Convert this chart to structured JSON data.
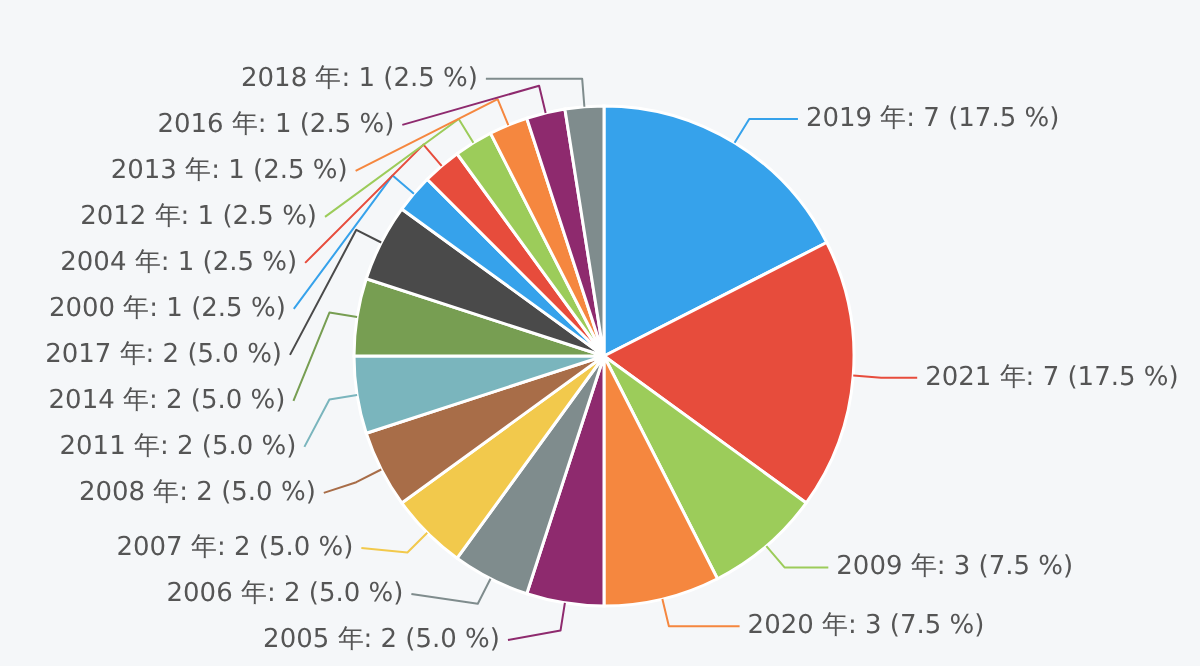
{
  "chart_data": {
    "type": "pie",
    "categories": [
      "2019 年",
      "2021 年",
      "2009 年",
      "2020 年",
      "2005 年",
      "2006 年",
      "2007 年",
      "2008 年",
      "2011 年",
      "2014 年",
      "2017 年",
      "2000 年",
      "2004 年",
      "2012 年",
      "2013 年",
      "2016 年",
      "2018 年"
    ],
    "values": [
      7,
      7,
      3,
      3,
      2,
      2,
      2,
      2,
      2,
      2,
      2,
      1,
      1,
      1,
      1,
      1,
      1
    ],
    "value_labels": [
      "7 (17.5 %)",
      "7 (17.5 %)",
      "3 (7.5 %)",
      "3 (7.5 %)",
      "2 (5.0 %)",
      "2 (5.0 %)",
      "2 (5.0 %)",
      "2 (5.0 %)",
      "2 (5.0 %)",
      "2 (5.0 %)",
      "2 (5.0 %)",
      "1 (2.5 %)",
      "1 (2.5 %)",
      "1 (2.5 %)",
      "1 (2.5 %)",
      "1 (2.5 %)",
      "1 (2.5 %)"
    ],
    "colors": [
      "#36a2eb",
      "#e74c3c",
      "#9ccc5a",
      "#f5873f",
      "#8e2a6e",
      "#7f8c8d",
      "#f2c94c",
      "#a86d48",
      "#7ab5bd",
      "#779e52",
      "#4a4a4a",
      "#36a2eb",
      "#e74c3c",
      "#9ccc5a",
      "#f5873f",
      "#8e2a6e",
      "#7f8c8d"
    ]
  }
}
